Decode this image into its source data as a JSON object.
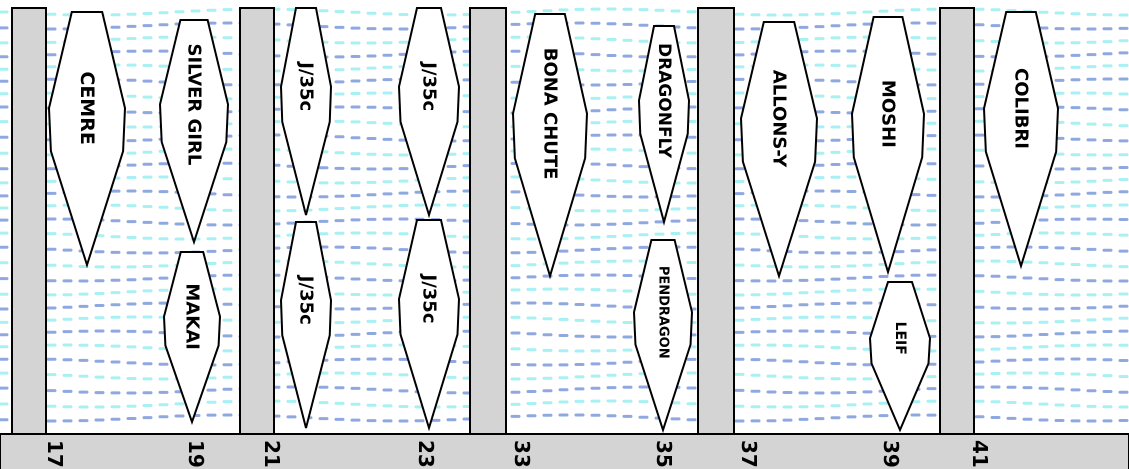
{
  "colors": {
    "water_dash_cyan": "#a8f0f2",
    "water_dash_blue": "#8fa8e0",
    "pier_fill": "#d4d4d4",
    "outline": "#000000"
  },
  "berth_numbers": [
    "17",
    "19",
    "21",
    "23",
    "33",
    "35",
    "37",
    "39",
    "41"
  ],
  "boats": [
    {
      "id": "cemre",
      "label": "CEMRE"
    },
    {
      "id": "silver-girl",
      "label": "SILVER GIRL"
    },
    {
      "id": "makai",
      "label": "MAKAI"
    },
    {
      "id": "j35c-1",
      "label": "J/35c"
    },
    {
      "id": "j35c-2",
      "label": "J/35c"
    },
    {
      "id": "j35c-3",
      "label": "J/35c"
    },
    {
      "id": "j35c-4",
      "label": "J/35c"
    },
    {
      "id": "bona-chute",
      "label": "BONA CHUTE"
    },
    {
      "id": "dragonfly",
      "label": "DRAGONFLY"
    },
    {
      "id": "pendragon",
      "label": "PENDRAGON"
    },
    {
      "id": "allons-y",
      "label": "ALLONS-Y"
    },
    {
      "id": "moshi",
      "label": "MOSHI"
    },
    {
      "id": "leif",
      "label": "LEIF"
    },
    {
      "id": "colibri",
      "label": "COLIBRI"
    }
  ]
}
